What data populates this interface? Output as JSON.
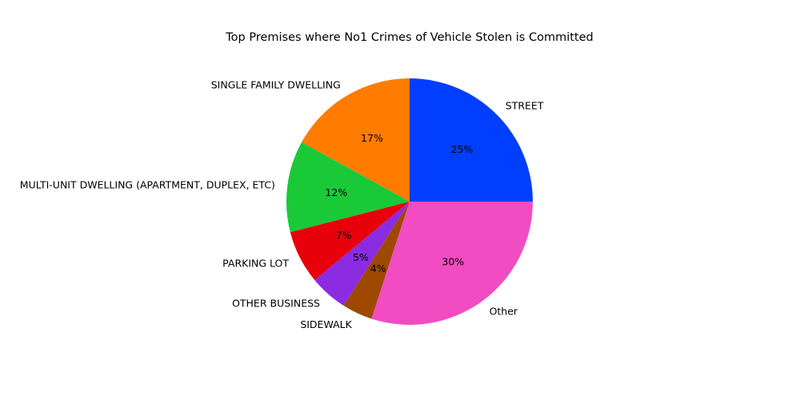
{
  "chart_data": {
    "type": "pie",
    "title": "Top Premises where No1 Crimes of Vehicle Stolen is Committed",
    "start_angle_deg": 0,
    "direction": "counterclockwise",
    "legend": "none",
    "slices": [
      {
        "label": "STREET",
        "value": 25,
        "pct_text": "25%",
        "color": "#023EFF"
      },
      {
        "label": "SINGLE FAMILY DWELLING",
        "value": 17,
        "pct_text": "17%",
        "color": "#FF7C00"
      },
      {
        "label": "MULTI-UNIT DWELLING (APARTMENT, DUPLEX, ETC)",
        "value": 12,
        "pct_text": "12%",
        "color": "#1AC938"
      },
      {
        "label": "PARKING LOT",
        "value": 7,
        "pct_text": "7%",
        "color": "#E8000B"
      },
      {
        "label": "OTHER BUSINESS",
        "value": 5,
        "pct_text": "5%",
        "color": "#8B2BE2"
      },
      {
        "label": "SIDEWALK",
        "value": 4,
        "pct_text": "4%",
        "color": "#9F4800"
      },
      {
        "label": "Other",
        "value": 30,
        "pct_text": "30%",
        "color": "#F14CC1"
      }
    ]
  }
}
